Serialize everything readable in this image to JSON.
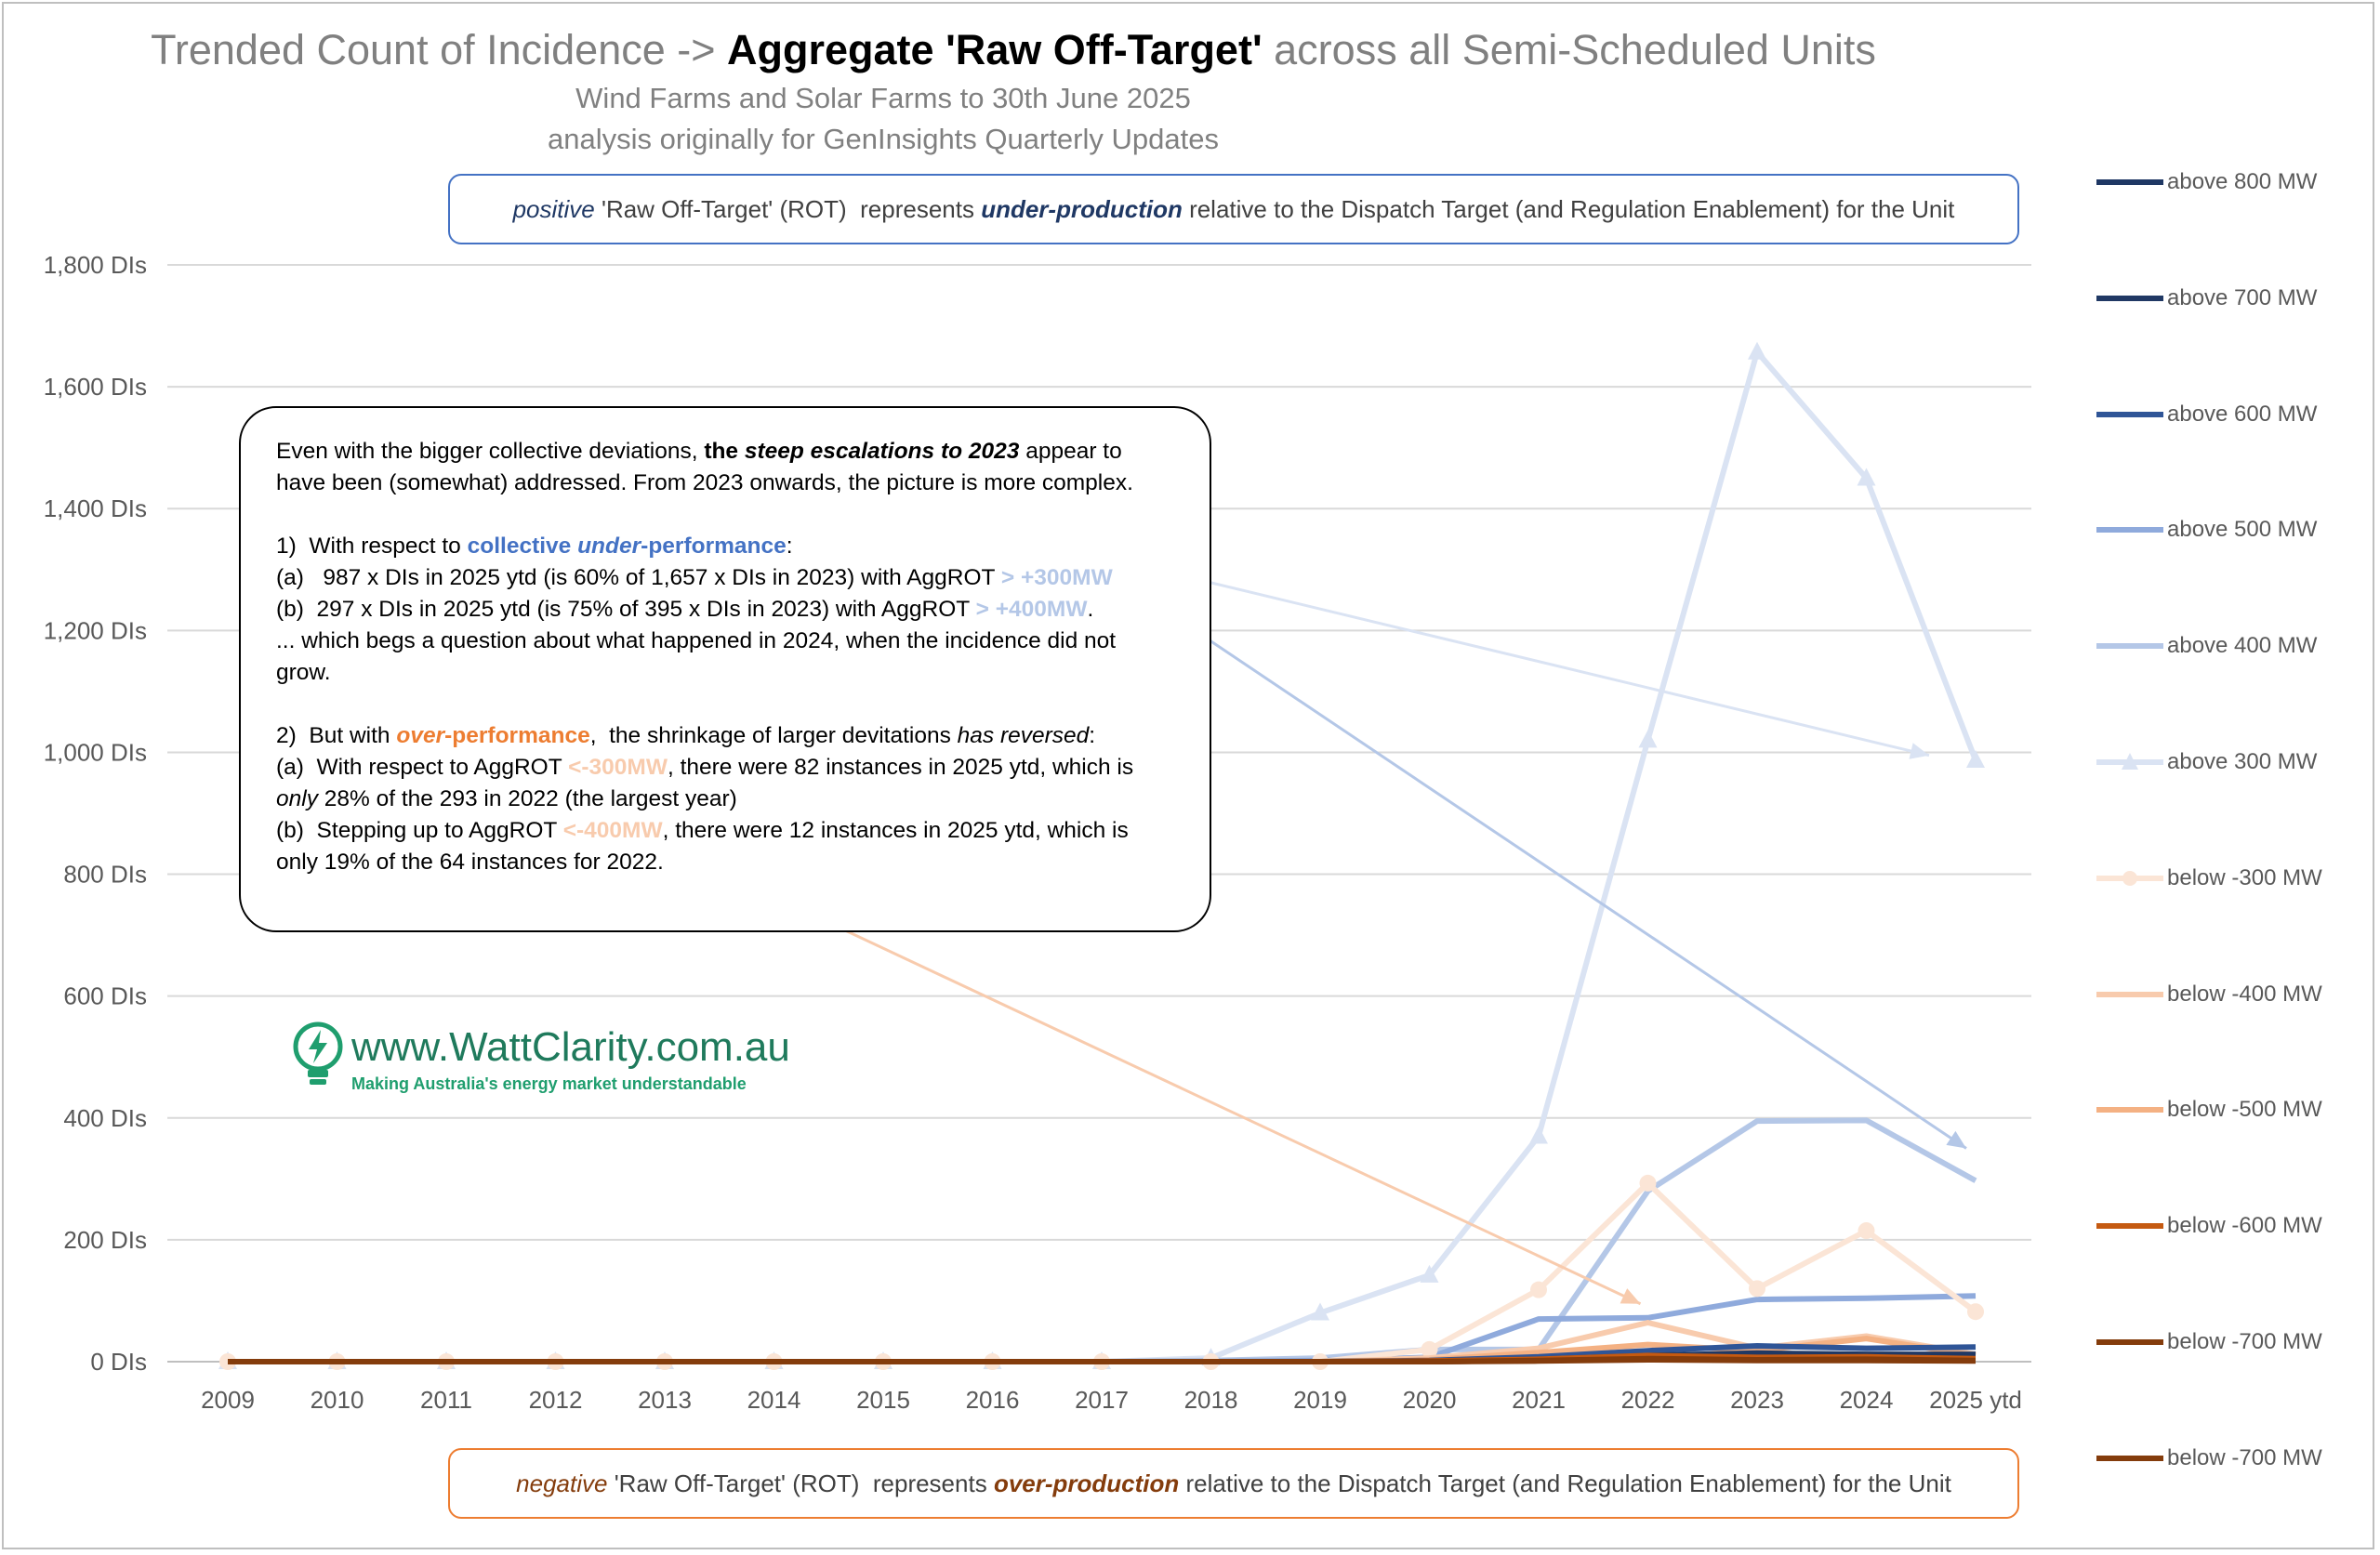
{
  "title": {
    "prefix": "Trended Count of Incidence -> ",
    "bold": "Aggregate 'Raw Off-Target'",
    "suffix": " across all Semi-Scheduled Units"
  },
  "subtitle1": "Wind Farms and Solar Farms to 30th June 2025",
  "subtitle2": "analysis originally for GenInsights Quarterly Updates",
  "banner_positive": {
    "w1": "positive",
    "t1": " 'Raw Off-Target' (ROT)  represents ",
    "w2": "under-production",
    "t2": " relative to the Dispatch Target (and Regulation Enablement) for the Unit"
  },
  "banner_negative": {
    "w1": "negative",
    "t1": " 'Raw Off-Target' (ROT)  represents ",
    "w2": "over-production",
    "t2": " relative to the Dispatch Target (and Regulation Enablement) for the Unit"
  },
  "annotation": {
    "p1a": "Even with the bigger collective deviations, ",
    "p1b": "the ",
    "p1c": "steep escalations to 2023",
    "p1d": " appear to have been (somewhat) addressed.  From 2023 onwards, the picture is more complex.",
    "s1a": "1)  With respect to ",
    "s1b": "collective ",
    "s1c": "under",
    "s1d": "-performance",
    "s1e": ":",
    "a1": "(a)   987 x DIs in 2025 ytd (is 60% of 1,657 x DIs in 2023) with AggROT ",
    "a1hl": "> +300MW",
    "b1": "(b)  297 x DIs in 2025 ytd (is 75% of 395 x DIs in 2023) with AggROT ",
    "b1hl": "> +400MW",
    "b1end": ".",
    "c1": "... which begs a question about what happened in 2024, when the incidence did not grow.",
    "s2a": "2)  But with ",
    "s2b": "over",
    "s2c": "-performance",
    "s2d": ",  the shrinkage of larger devitations ",
    "s2e": "has reversed",
    "s2f": ":",
    "a2": "(a)  With respect to AggROT ",
    "a2hl": "<-300MW",
    "a2b": ", there were 82 instances in 2025 ytd, which is ",
    "a2c": "only",
    "a2d": " 28% of the 293 in 2022 (the largest year)",
    "b2": "(b)  Stepping up to AggROT ",
    "b2hl": "<-400MW",
    "b2b": ", there were 12 instances in 2025 ytd, which is only 19% of the 64 instances for 2022."
  },
  "logo": {
    "main": "www.WattClarity.com.au",
    "sub": "Making Australia's energy market understandable"
  },
  "colors": {
    "above800": "#1f3864",
    "above700": "#203864",
    "above600": "#2f5597",
    "above500": "#8faadc",
    "above400": "#b4c7e7",
    "above300": "#dae3f3",
    "below300": "#fbe5d6",
    "below400": "#f8cbad",
    "below500": "#f4b183",
    "below600": "#c55a11",
    "below700a": "#843c0c",
    "below700b": "#843c0c"
  },
  "chart_data": {
    "type": "line",
    "title": "Trended Count of Incidence -> Aggregate 'Raw Off-Target' across all Semi-Scheduled Units",
    "xlabel": "",
    "ylabel": "",
    "ylim": [
      0,
      1800
    ],
    "yticks": [
      0,
      200,
      400,
      600,
      800,
      1000,
      1200,
      1400,
      1600,
      1800
    ],
    "ytick_labels": [
      "0 DIs",
      "200 DIs",
      "400 DIs",
      "600 DIs",
      "800 DIs",
      "1,000 DIs",
      "1,200 DIs",
      "1,400 DIs",
      "1,600 DIs",
      "1,800 DIs"
    ],
    "grid": true,
    "legend": "right",
    "categories": [
      "2009",
      "2010",
      "2011",
      "2012",
      "2013",
      "2014",
      "2015",
      "2016",
      "2017",
      "2018",
      "2019",
      "2020",
      "2021",
      "2022",
      "2023",
      "2024",
      "2025 ytd"
    ],
    "series": [
      {
        "name": "above 800 MW",
        "color": "#1f3864",
        "marker": "none",
        "values": [
          0,
          0,
          0,
          0,
          0,
          0,
          0,
          0,
          0,
          0,
          0,
          0,
          2,
          4,
          6,
          5,
          6
        ]
      },
      {
        "name": "above 700 MW",
        "color": "#203864",
        "marker": "none",
        "values": [
          0,
          0,
          0,
          0,
          0,
          0,
          0,
          0,
          0,
          0,
          0,
          1,
          4,
          10,
          14,
          12,
          12
        ]
      },
      {
        "name": "above 600 MW",
        "color": "#2f5597",
        "marker": "none",
        "values": [
          0,
          0,
          0,
          0,
          0,
          0,
          0,
          0,
          0,
          0,
          0,
          2,
          8,
          18,
          26,
          22,
          24
        ]
      },
      {
        "name": "above 500 MW",
        "color": "#8faadc",
        "marker": "none",
        "values": [
          0,
          0,
          0,
          0,
          0,
          0,
          0,
          0,
          0,
          0,
          2,
          7,
          70,
          72,
          102,
          104,
          108
        ]
      },
      {
        "name": "above 400 MW",
        "color": "#b4c7e7",
        "marker": "none",
        "values": [
          0,
          0,
          0,
          0,
          0,
          0,
          0,
          0,
          0,
          2,
          6,
          20,
          20,
          280,
          395,
          396,
          297
        ]
      },
      {
        "name": "above 300 MW",
        "color": "#dae3f3",
        "marker": "triangle",
        "values": [
          0,
          0,
          0,
          0,
          0,
          0,
          0,
          0,
          0,
          6,
          80,
          142,
          370,
          1020,
          1657,
          1450,
          987
        ]
      },
      {
        "name": "below -300 MW",
        "color": "#fbe5d6",
        "marker": "circle",
        "values": [
          0,
          0,
          0,
          0,
          0,
          0,
          0,
          0,
          0,
          0,
          0,
          20,
          118,
          293,
          120,
          215,
          82
        ]
      },
      {
        "name": "below -400 MW",
        "color": "#f8cbad",
        "marker": "none",
        "values": [
          0,
          0,
          0,
          0,
          0,
          0,
          0,
          0,
          0,
          0,
          0,
          6,
          22,
          64,
          22,
          42,
          12
        ]
      },
      {
        "name": "below -500 MW",
        "color": "#f4b183",
        "marker": "none",
        "values": [
          0,
          0,
          0,
          0,
          0,
          0,
          0,
          0,
          0,
          0,
          0,
          3,
          15,
          28,
          18,
          38,
          10
        ]
      },
      {
        "name": "below -600 MW",
        "color": "#c55a11",
        "marker": "none",
        "values": [
          0,
          0,
          0,
          0,
          0,
          0,
          0,
          0,
          0,
          0,
          0,
          1,
          4,
          10,
          7,
          8,
          5
        ]
      },
      {
        "name": "below -700 MW",
        "color": "#843c0c",
        "marker": "none",
        "values": [
          0,
          0,
          0,
          0,
          0,
          0,
          0,
          0,
          0,
          0,
          0,
          0,
          2,
          5,
          3,
          4,
          2
        ]
      },
      {
        "name": "below -700 MW",
        "color": "#843c0c",
        "marker": "none",
        "values": [
          0,
          0,
          0,
          0,
          0,
          0,
          0,
          0,
          0,
          0,
          0,
          0,
          1,
          3,
          2,
          2,
          1
        ]
      }
    ],
    "arrows": [
      {
        "from_year_index": -1,
        "note": "annotation arrow to above 300 MW 2025 ytd",
        "target_year": "2025 ytd",
        "target_value": 995
      },
      {
        "note": "annotation arrow to above 400 MW 2025 ytd",
        "target_year": "2025 ytd",
        "target_value": 345
      },
      {
        "note": "annotation arrow to below -300 MW 2022",
        "target_year": "2022",
        "target_value": 100
      }
    ]
  }
}
